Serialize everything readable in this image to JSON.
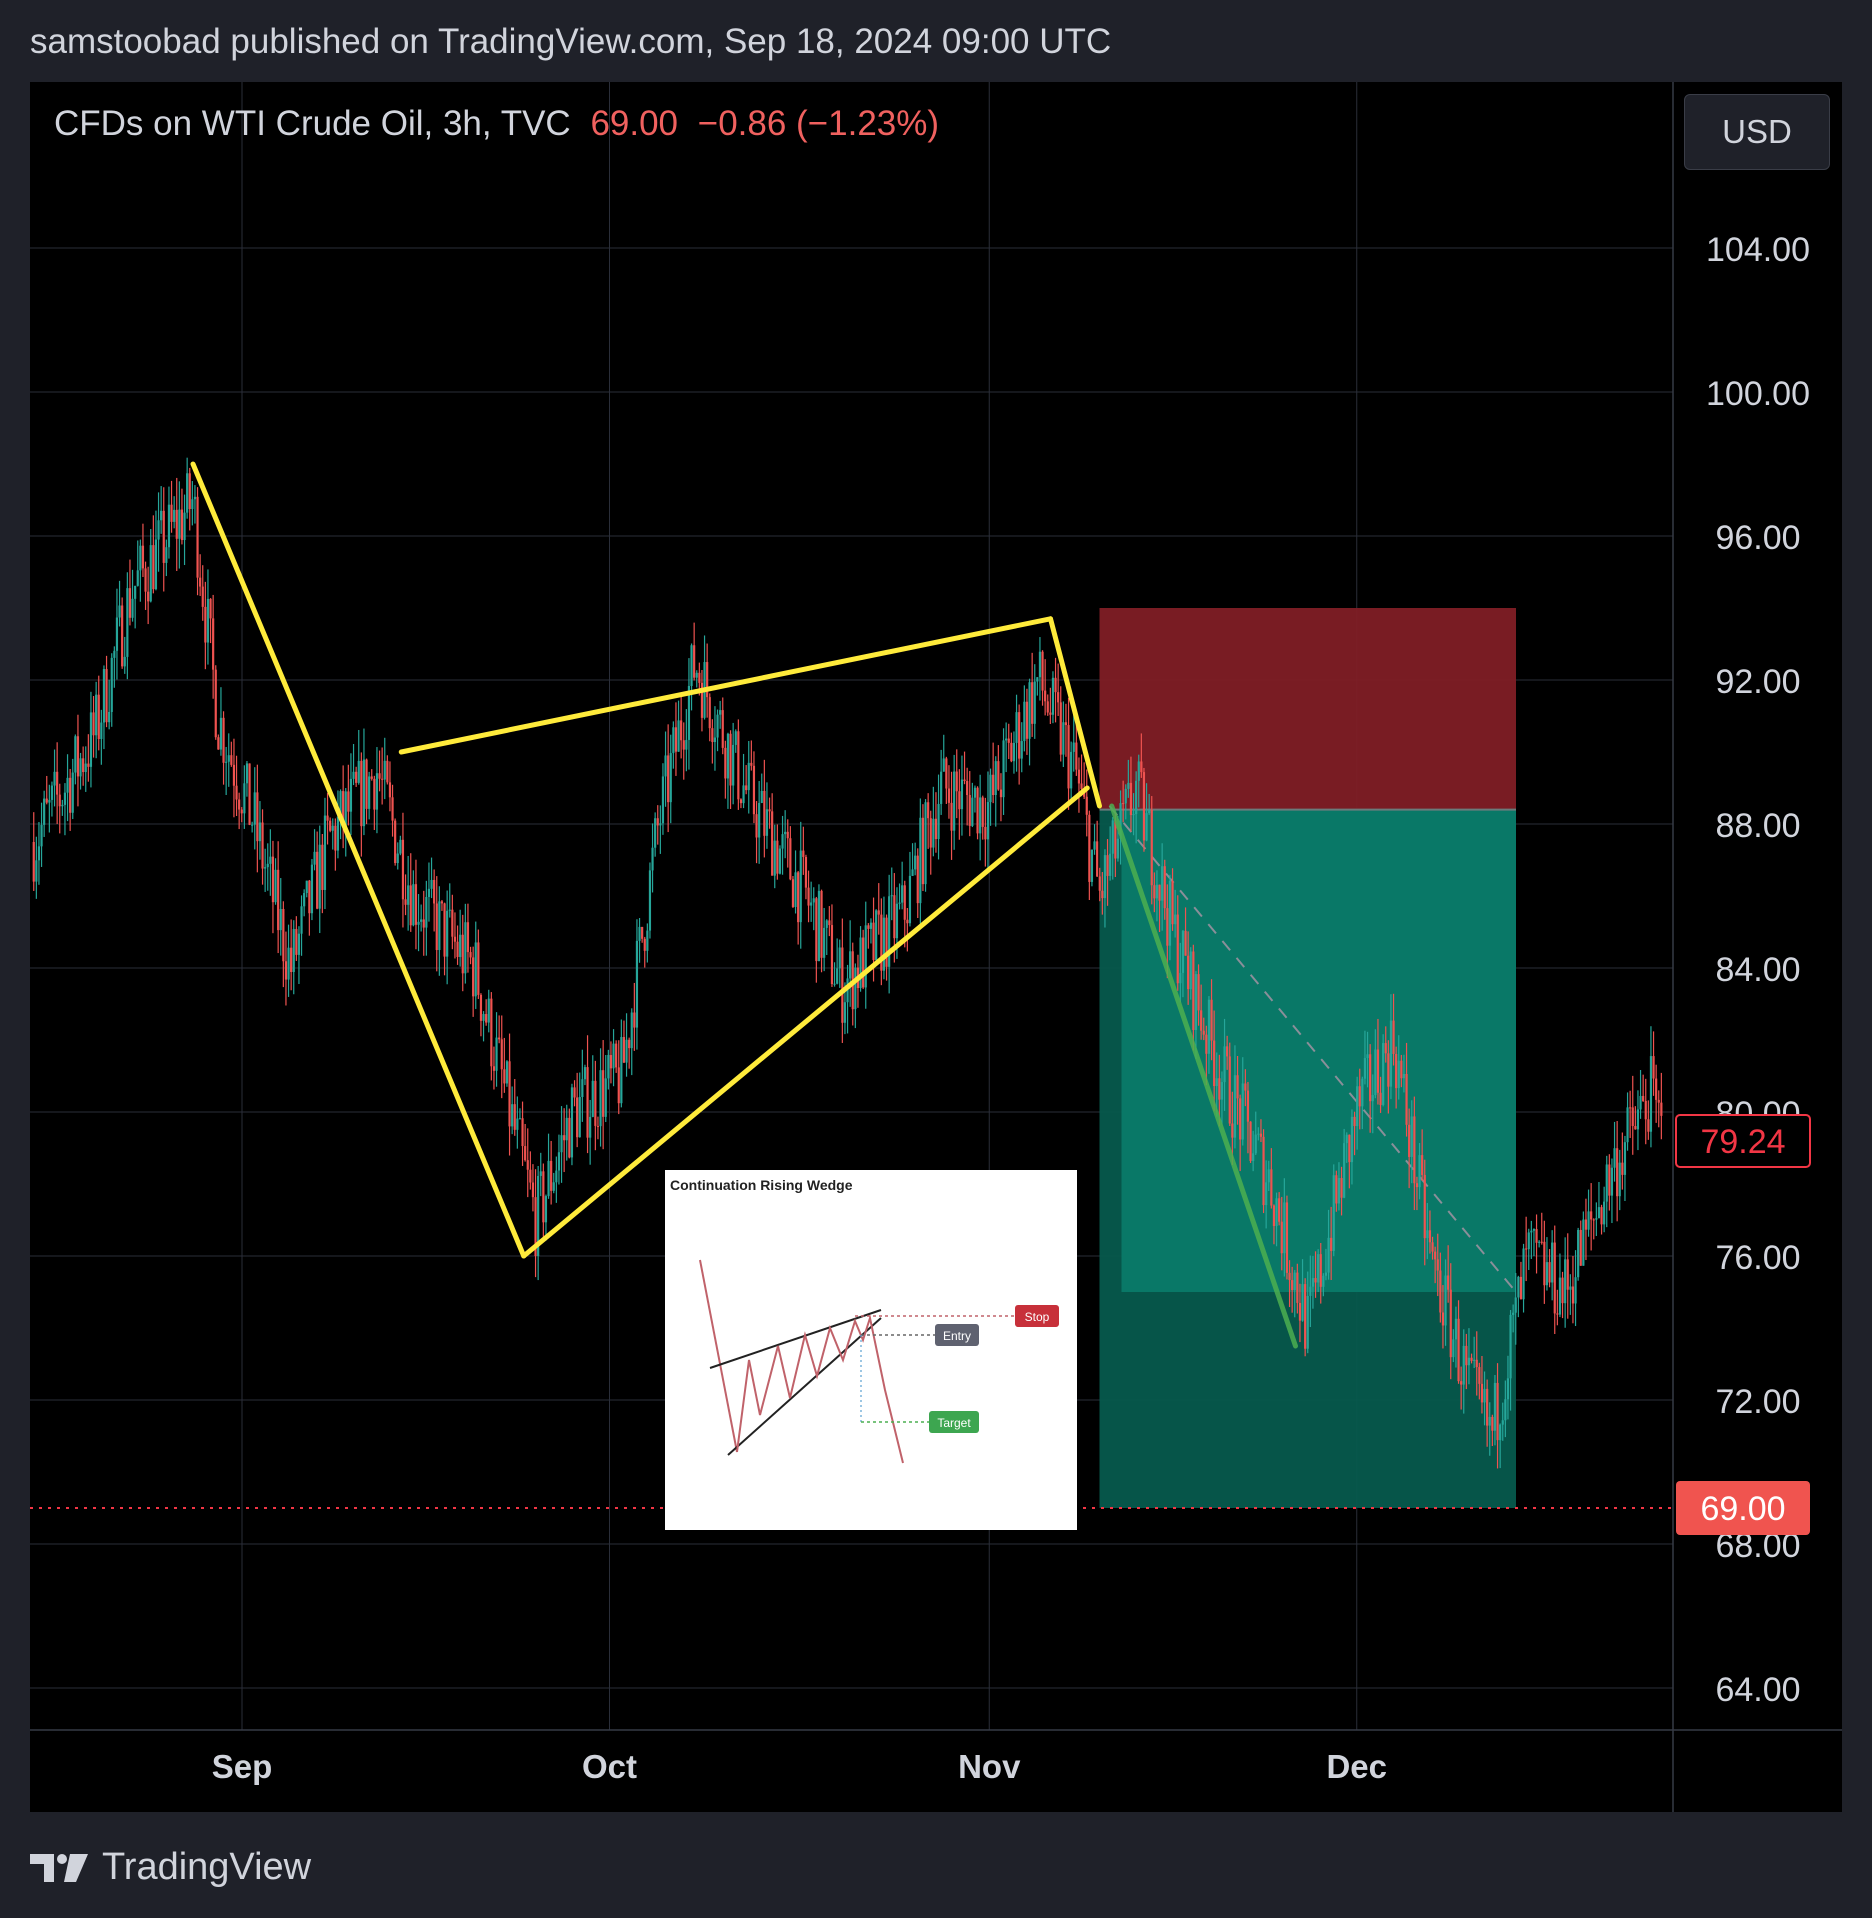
{
  "header": {
    "text": "samstoobad published on TradingView.com, Sep 18, 2024 09:00 UTC"
  },
  "legend": {
    "symbol": "CFDs on WTI Crude Oil, 3h, TVC",
    "price": "69.00",
    "change": "−0.86 (−1.23%)"
  },
  "currency_label": "USD",
  "price_labels": {
    "current_price": "69.00",
    "marker_price": "79.24"
  },
  "inset": {
    "title": "Continuation Rising Wedge",
    "stop_label": "Stop",
    "entry_label": "Entry",
    "target_label": "Target"
  },
  "footer": {
    "brand": "TradingView"
  },
  "colors": {
    "background": "#000000",
    "panel": "#1f2129",
    "up_candle": "#26a69a",
    "down_candle": "#ef5350",
    "wedge_line": "#ffeb3b",
    "stop_zone": "#7f1d25",
    "target_zone": "#0a7c6a",
    "target_zone_lower": "#065a4d",
    "projection_line": "#4caf50",
    "current_price_line": "#f23645"
  },
  "chart_data": {
    "type": "candlestick",
    "symbol": "CFDs on WTI Crude Oil",
    "interval": "3h",
    "x_ticks": [
      "Sep",
      "Oct",
      "Nov",
      "Dec"
    ],
    "y_ticks": [
      64,
      68,
      72,
      76,
      80,
      84,
      88,
      92,
      96,
      100,
      104
    ],
    "y_range": [
      63,
      108
    ],
    "grid": true,
    "last_price": 69.0,
    "price_marker": 79.24,
    "price_path_approx": [
      {
        "date": "2024-08-15",
        "price": 87.5
      },
      {
        "date": "2024-08-20",
        "price": 90.5
      },
      {
        "date": "2024-08-23",
        "price": 94.5
      },
      {
        "date": "2024-08-28",
        "price": 97.0
      },
      {
        "date": "2024-08-30",
        "price": 91.0
      },
      {
        "date": "2024-09-02",
        "price": 88.0
      },
      {
        "date": "2024-09-05",
        "price": 84.0
      },
      {
        "date": "2024-09-08",
        "price": 87.5
      },
      {
        "date": "2024-09-12",
        "price": 89.5
      },
      {
        "date": "2024-09-15",
        "price": 86.0
      },
      {
        "date": "2024-09-20",
        "price": 84.0
      },
      {
        "date": "2024-09-25",
        "price": 77.0
      },
      {
        "date": "2024-09-28",
        "price": 80.0
      },
      {
        "date": "2024-10-02",
        "price": 81.0
      },
      {
        "date": "2024-10-05",
        "price": 88.0
      },
      {
        "date": "2024-10-08",
        "price": 92.5
      },
      {
        "date": "2024-10-12",
        "price": 89.0
      },
      {
        "date": "2024-10-17",
        "price": 86.0
      },
      {
        "date": "2024-10-20",
        "price": 83.5
      },
      {
        "date": "2024-10-25",
        "price": 85.5
      },
      {
        "date": "2024-10-28",
        "price": 89.0
      },
      {
        "date": "2024-11-01",
        "price": 88.5
      },
      {
        "date": "2024-11-05",
        "price": 92.0
      },
      {
        "date": "2024-11-08",
        "price": 89.5
      },
      {
        "date": "2024-11-10",
        "price": 86.0
      },
      {
        "date": "2024-11-13",
        "price": 89.0
      },
      {
        "date": "2024-11-16",
        "price": 85.0
      },
      {
        "date": "2024-11-20",
        "price": 81.0
      },
      {
        "date": "2024-11-24",
        "price": 78.0
      },
      {
        "date": "2024-11-27",
        "price": 74.0
      },
      {
        "date": "2024-12-01",
        "price": 80.0
      },
      {
        "date": "2024-12-04",
        "price": 82.0
      },
      {
        "date": "2024-12-07",
        "price": 76.0
      },
      {
        "date": "2024-12-10",
        "price": 72.5
      },
      {
        "date": "2024-12-12",
        "price": 71.0
      },
      {
        "date": "2024-12-15",
        "price": 76.0
      },
      {
        "date": "2024-12-18",
        "price": 75.0
      },
      {
        "date": "2024-12-22",
        "price": 78.5
      },
      {
        "date": "2024-12-25",
        "price": 80.5
      },
      {
        "date": "2024-12-26",
        "price": 79.24
      }
    ],
    "wedge_lines": [
      {
        "from": {
          "date": "2024-08-28",
          "price": 98.0
        },
        "to": {
          "date": "2024-09-24",
          "price": 76.0
        }
      },
      {
        "from": {
          "date": "2024-09-24",
          "price": 76.0
        },
        "to": {
          "date": "2024-11-09",
          "price": 89.0
        }
      },
      {
        "from": {
          "date": "2024-09-14",
          "price": 90.0
        },
        "to": {
          "date": "2024-11-06",
          "price": 93.7
        }
      },
      {
        "from": {
          "date": "2024-11-06",
          "price": 93.7
        },
        "to": {
          "date": "2024-11-10",
          "price": 88.5
        }
      }
    ],
    "short_position": {
      "entry": 88.4,
      "stop": 94.0,
      "target": 69.0,
      "start": "2024-11-10",
      "end": "2024-12-14"
    },
    "projection_line": {
      "from": {
        "date": "2024-11-11",
        "price": 88.5
      },
      "to": {
        "date": "2024-11-26",
        "price": 73.5
      }
    }
  }
}
